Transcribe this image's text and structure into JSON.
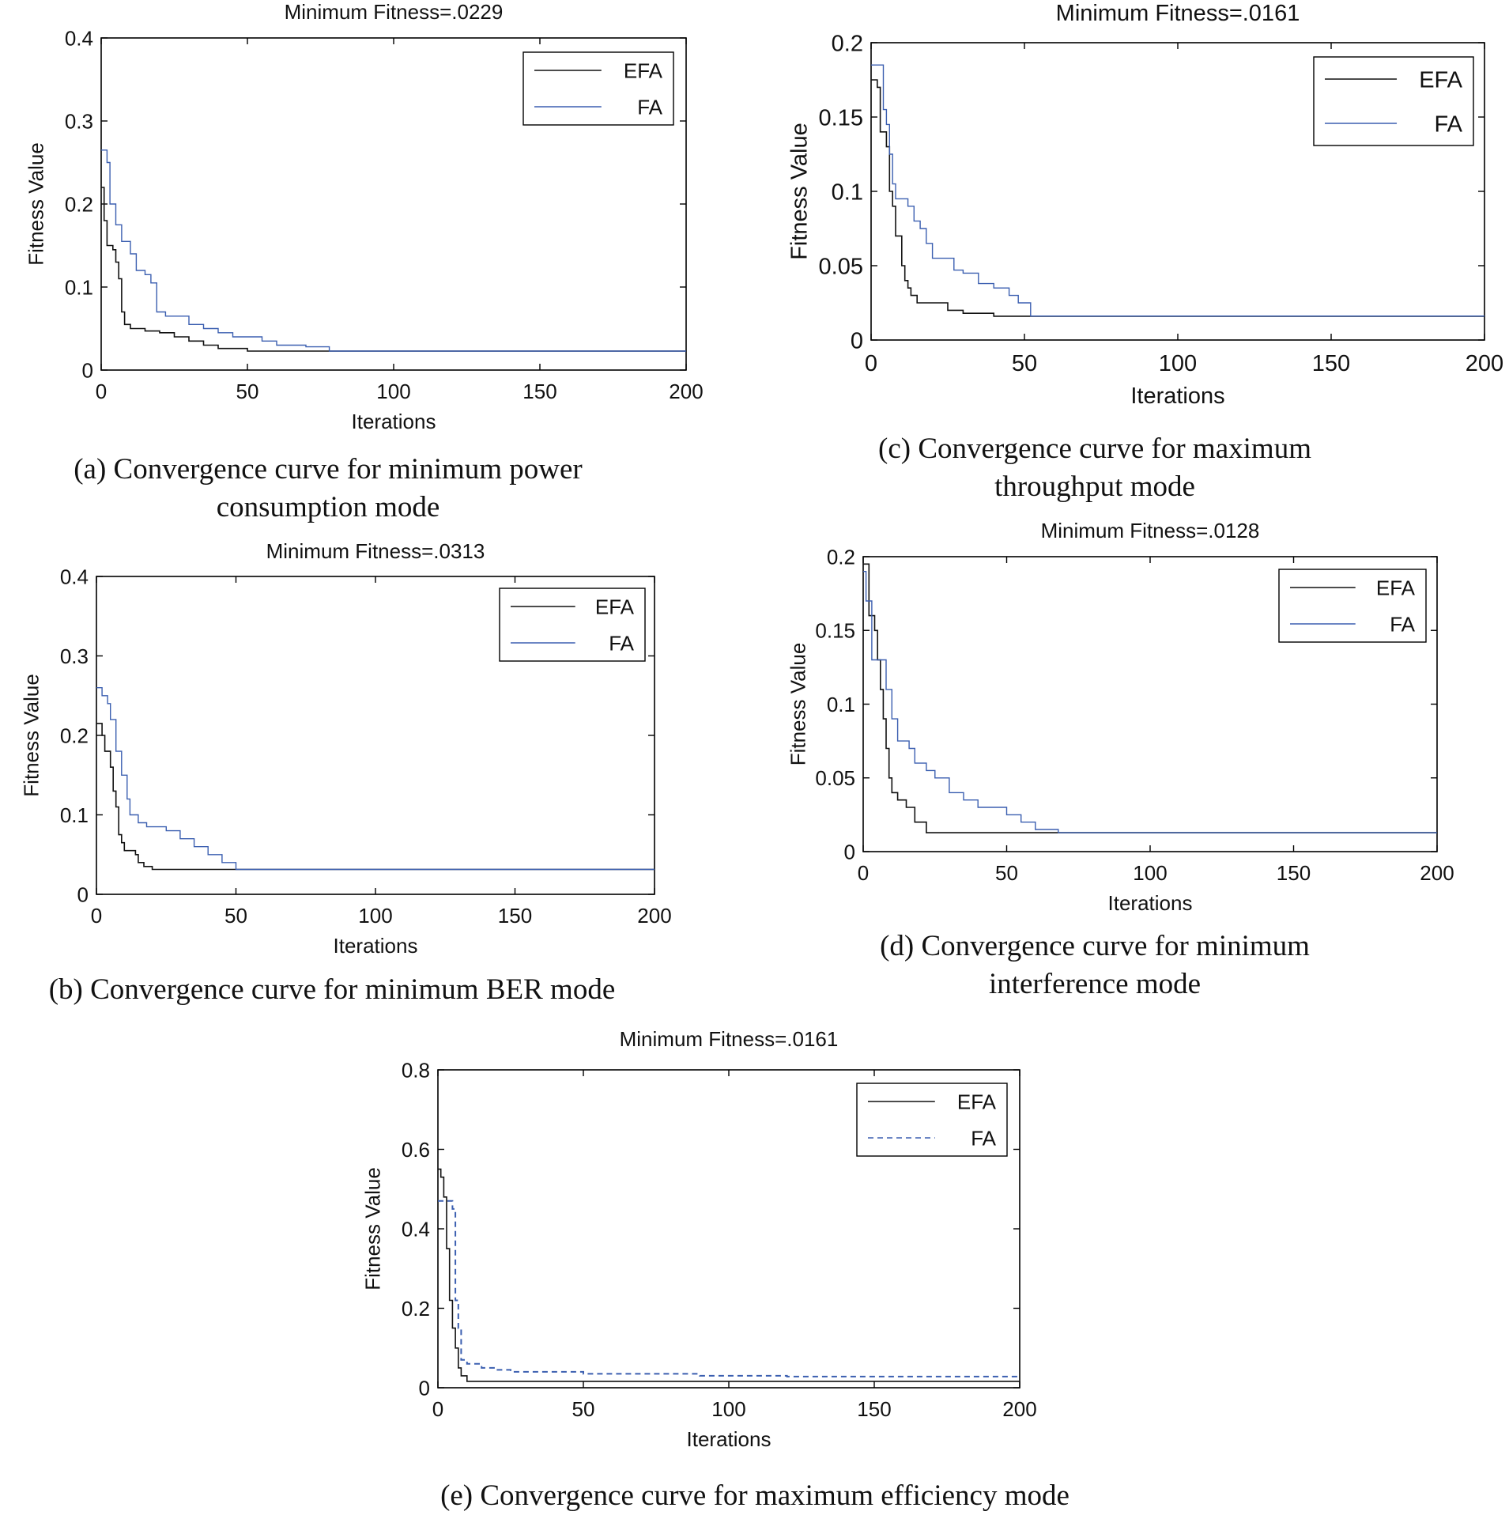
{
  "colors": {
    "efa": "#111111",
    "fa": "#3b5fb0",
    "axis": "#000000",
    "background": "#ffffff"
  },
  "chart_data": [
    {
      "id": "a",
      "type": "line",
      "title": "Minimum Fitness=.0229",
      "xlabel": "Iterations",
      "ylabel": "Fitness Value",
      "xlim": [
        0,
        200
      ],
      "ylim": [
        0,
        0.4
      ],
      "xticks": [
        0,
        50,
        100,
        150,
        200
      ],
      "xtick_labels": [
        "0",
        "50",
        "100",
        "150",
        "200"
      ],
      "yticks": [
        0,
        0.1,
        0.2,
        0.3,
        0.4
      ],
      "ytick_labels": [
        "0",
        "0.1",
        "0.2",
        "0.3",
        "0.4"
      ],
      "legend": [
        "EFA",
        "FA"
      ],
      "legend_position": "top-right",
      "grid": false,
      "caption": [
        "(a)  Convergence curve for minimum power",
        "consumption mode"
      ],
      "series": [
        {
          "name": "EFA",
          "style": "solid",
          "points": [
            [
              0,
              0.22
            ],
            [
              1,
              0.18
            ],
            [
              2,
              0.15
            ],
            [
              4,
              0.145
            ],
            [
              5,
              0.13
            ],
            [
              6,
              0.11
            ],
            [
              7,
              0.07
            ],
            [
              8,
              0.055
            ],
            [
              10,
              0.05
            ],
            [
              15,
              0.047
            ],
            [
              20,
              0.045
            ],
            [
              25,
              0.04
            ],
            [
              30,
              0.035
            ],
            [
              35,
              0.03
            ],
            [
              40,
              0.026
            ],
            [
              50,
              0.0229
            ],
            [
              200,
              0.0229
            ]
          ]
        },
        {
          "name": "FA",
          "style": "solid",
          "points": [
            [
              0,
              0.265
            ],
            [
              2,
              0.25
            ],
            [
              3,
              0.2
            ],
            [
              5,
              0.175
            ],
            [
              7,
              0.155
            ],
            [
              10,
              0.14
            ],
            [
              12,
              0.12
            ],
            [
              15,
              0.115
            ],
            [
              17,
              0.105
            ],
            [
              19,
              0.07
            ],
            [
              22,
              0.065
            ],
            [
              30,
              0.055
            ],
            [
              35,
              0.05
            ],
            [
              40,
              0.045
            ],
            [
              45,
              0.04
            ],
            [
              55,
              0.035
            ],
            [
              60,
              0.03
            ],
            [
              70,
              0.028
            ],
            [
              78,
              0.0229
            ],
            [
              200,
              0.0229
            ]
          ]
        }
      ]
    },
    {
      "id": "c",
      "type": "line",
      "title": "Minimum Fitness=.0161",
      "xlabel": "Iterations",
      "ylabel": "Fitness Value",
      "xlim": [
        0,
        200
      ],
      "ylim": [
        0,
        0.2
      ],
      "xticks": [
        0,
        50,
        100,
        150,
        200
      ],
      "xtick_labels": [
        "0",
        "50",
        "100",
        "150",
        "200"
      ],
      "yticks": [
        0,
        0.05,
        0.1,
        0.15,
        0.2
      ],
      "ytick_labels": [
        "0",
        "0.05",
        "0.1",
        "0.15",
        "0.2"
      ],
      "legend": [
        "EFA",
        "FA"
      ],
      "legend_position": "top-right",
      "grid": false,
      "caption": [
        "(c)  Convergence curve for maximum",
        "throughput mode"
      ],
      "series": [
        {
          "name": "EFA",
          "style": "solid",
          "points": [
            [
              0,
              0.175
            ],
            [
              2,
              0.17
            ],
            [
              3,
              0.14
            ],
            [
              5,
              0.13
            ],
            [
              6,
              0.1
            ],
            [
              7,
              0.09
            ],
            [
              8,
              0.07
            ],
            [
              10,
              0.05
            ],
            [
              11,
              0.04
            ],
            [
              12,
              0.035
            ],
            [
              13,
              0.03
            ],
            [
              15,
              0.025
            ],
            [
              20,
              0.025
            ],
            [
              25,
              0.02
            ],
            [
              30,
              0.018
            ],
            [
              40,
              0.016
            ],
            [
              200,
              0.0161
            ]
          ]
        },
        {
          "name": "FA",
          "style": "solid",
          "points": [
            [
              0,
              0.185
            ],
            [
              3,
              0.185
            ],
            [
              4,
              0.155
            ],
            [
              5,
              0.145
            ],
            [
              6,
              0.125
            ],
            [
              7,
              0.105
            ],
            [
              8,
              0.095
            ],
            [
              12,
              0.09
            ],
            [
              14,
              0.08
            ],
            [
              16,
              0.075
            ],
            [
              18,
              0.065
            ],
            [
              20,
              0.055
            ],
            [
              25,
              0.055
            ],
            [
              27,
              0.047
            ],
            [
              30,
              0.045
            ],
            [
              35,
              0.038
            ],
            [
              40,
              0.035
            ],
            [
              45,
              0.03
            ],
            [
              48,
              0.025
            ],
            [
              52,
              0.0161
            ],
            [
              200,
              0.0161
            ]
          ]
        }
      ]
    },
    {
      "id": "b",
      "type": "line",
      "title": "Minimum Fitness=.0313",
      "xlabel": "Iterations",
      "ylabel": "Fitness Value",
      "xlim": [
        0,
        200
      ],
      "ylim": [
        0,
        0.4
      ],
      "xticks": [
        0,
        50,
        100,
        150,
        200
      ],
      "xtick_labels": [
        "0",
        "50",
        "100",
        "150",
        "200"
      ],
      "yticks": [
        0,
        0.1,
        0.2,
        0.3,
        0.4
      ],
      "ytick_labels": [
        "0",
        "0.1",
        "0.2",
        "0.3",
        "0.4"
      ],
      "legend": [
        "EFA",
        "FA"
      ],
      "legend_position": "top-right",
      "grid": false,
      "caption": [
        "(b)  Convergence curve for minimum BER mode"
      ],
      "series": [
        {
          "name": "EFA",
          "style": "solid",
          "points": [
            [
              0,
              0.215
            ],
            [
              2,
              0.2
            ],
            [
              3,
              0.18
            ],
            [
              5,
              0.16
            ],
            [
              6,
              0.13
            ],
            [
              7,
              0.11
            ],
            [
              8,
              0.075
            ],
            [
              9,
              0.065
            ],
            [
              10,
              0.055
            ],
            [
              14,
              0.05
            ],
            [
              15,
              0.04
            ],
            [
              17,
              0.035
            ],
            [
              20,
              0.0313
            ],
            [
              200,
              0.0313
            ]
          ]
        },
        {
          "name": "FA",
          "style": "solid",
          "points": [
            [
              0,
              0.26
            ],
            [
              2,
              0.25
            ],
            [
              4,
              0.24
            ],
            [
              5,
              0.22
            ],
            [
              7,
              0.18
            ],
            [
              9,
              0.15
            ],
            [
              11,
              0.12
            ],
            [
              12,
              0.1
            ],
            [
              15,
              0.09
            ],
            [
              18,
              0.085
            ],
            [
              25,
              0.08
            ],
            [
              30,
              0.07
            ],
            [
              35,
              0.06
            ],
            [
              40,
              0.05
            ],
            [
              45,
              0.04
            ],
            [
              50,
              0.0313
            ],
            [
              200,
              0.0313
            ]
          ]
        }
      ]
    },
    {
      "id": "d",
      "type": "line",
      "title": "Minimum Fitness=.0128",
      "xlabel": "Iterations",
      "ylabel": "Fitness Value",
      "xlim": [
        0,
        200
      ],
      "ylim": [
        0,
        0.2
      ],
      "xticks": [
        0,
        50,
        100,
        150,
        200
      ],
      "xtick_labels": [
        "0",
        "50",
        "100",
        "150",
        "200"
      ],
      "yticks": [
        0,
        0.05,
        0.1,
        0.15,
        0.2
      ],
      "ytick_labels": [
        "0",
        "0.05",
        "0.1",
        "0.15",
        "0.2"
      ],
      "legend": [
        "EFA",
        "FA"
      ],
      "legend_position": "top-right",
      "grid": false,
      "caption": [
        "(d)  Convergence curve for minimum",
        "interference mode"
      ],
      "series": [
        {
          "name": "EFA",
          "style": "solid",
          "points": [
            [
              0,
              0.195
            ],
            [
              2,
              0.16
            ],
            [
              4,
              0.15
            ],
            [
              5,
              0.13
            ],
            [
              6,
              0.11
            ],
            [
              7,
              0.09
            ],
            [
              8,
              0.07
            ],
            [
              9,
              0.05
            ],
            [
              10,
              0.04
            ],
            [
              12,
              0.035
            ],
            [
              15,
              0.03
            ],
            [
              18,
              0.02
            ],
            [
              22,
              0.0128
            ],
            [
              200,
              0.0128
            ]
          ]
        },
        {
          "name": "FA",
          "style": "solid",
          "points": [
            [
              0,
              0.19
            ],
            [
              1,
              0.17
            ],
            [
              3,
              0.13
            ],
            [
              6,
              0.13
            ],
            [
              8,
              0.11
            ],
            [
              10,
              0.09
            ],
            [
              12,
              0.075
            ],
            [
              16,
              0.07
            ],
            [
              18,
              0.06
            ],
            [
              22,
              0.055
            ],
            [
              25,
              0.05
            ],
            [
              30,
              0.04
            ],
            [
              35,
              0.035
            ],
            [
              40,
              0.03
            ],
            [
              50,
              0.025
            ],
            [
              55,
              0.02
            ],
            [
              60,
              0.015
            ],
            [
              68,
              0.0128
            ],
            [
              200,
              0.0128
            ]
          ]
        }
      ]
    },
    {
      "id": "e",
      "type": "line",
      "title": "Minimum Fitness=.0161",
      "xlabel": "Iterations",
      "ylabel": "Fitness Value",
      "xlim": [
        0,
        200
      ],
      "ylim": [
        0,
        0.8
      ],
      "xticks": [
        0,
        50,
        100,
        150,
        200
      ],
      "xtick_labels": [
        "0",
        "50",
        "100",
        "150",
        "200"
      ],
      "yticks": [
        0,
        0.2,
        0.4,
        0.6,
        0.8
      ],
      "ytick_labels": [
        "0",
        "0.2",
        "0.4",
        "0.6",
        "0.8"
      ],
      "legend": [
        "EFA",
        "FA"
      ],
      "legend_position": "top-right",
      "grid": false,
      "caption": [
        "(e)  Convergence curve for maximum efficiency mode"
      ],
      "series": [
        {
          "name": "EFA",
          "style": "solid",
          "points": [
            [
              0,
              0.55
            ],
            [
              1,
              0.53
            ],
            [
              2,
              0.48
            ],
            [
              3,
              0.35
            ],
            [
              4,
              0.22
            ],
            [
              5,
              0.15
            ],
            [
              6,
              0.1
            ],
            [
              7,
              0.05
            ],
            [
              8,
              0.03
            ],
            [
              10,
              0.0161
            ],
            [
              200,
              0.0161
            ]
          ]
        },
        {
          "name": "FA",
          "style": "dashed",
          "points": [
            [
              0,
              0.47
            ],
            [
              4,
              0.47
            ],
            [
              5,
              0.45
            ],
            [
              6,
              0.22
            ],
            [
              7,
              0.15
            ],
            [
              8,
              0.07
            ],
            [
              10,
              0.06
            ],
            [
              15,
              0.05
            ],
            [
              20,
              0.045
            ],
            [
              25,
              0.04
            ],
            [
              50,
              0.035
            ],
            [
              90,
              0.03
            ],
            [
              120,
              0.028
            ],
            [
              200,
              0.028
            ]
          ]
        }
      ]
    }
  ]
}
